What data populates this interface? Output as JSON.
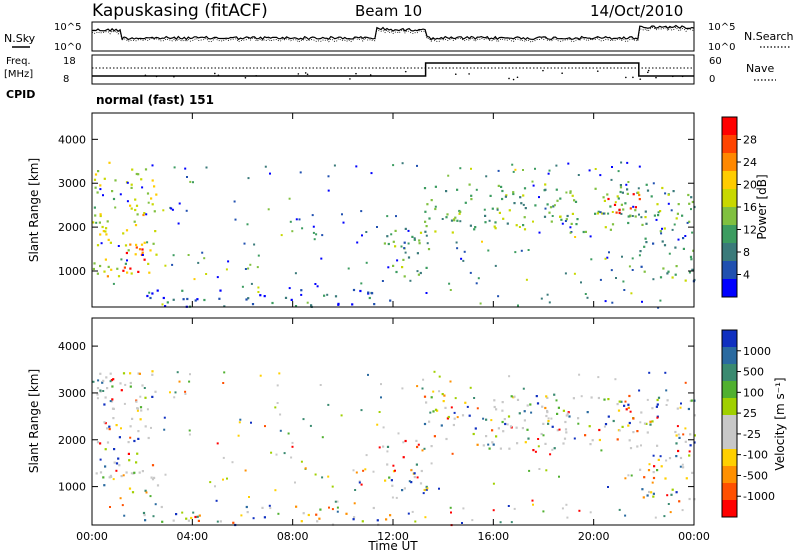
{
  "header": {
    "station": "Kapuskasing (fitACF)",
    "beam": "Beam 10",
    "date": "14/Oct/2010"
  },
  "noise_panel": {
    "left_label": "N.Sky",
    "right_label": "N.Search",
    "left_ticks": [
      "10^5",
      "10^0"
    ],
    "right_ticks": [
      "10^5",
      "10^0"
    ]
  },
  "freq_panel": {
    "left_label_1": "Freq.",
    "left_label_2": "[MHz]",
    "right_label": "Nave",
    "left_ticks": [
      "18",
      "8"
    ],
    "right_ticks": [
      "60",
      "0"
    ],
    "cpid_label": "CPID",
    "cpid_text": "normal (fast) 151"
  },
  "chart_data": [
    {
      "type": "heatmap",
      "name": "power",
      "xlabel": "Time UT",
      "ylabel": "Slant Range [km]",
      "xlim": [
        0,
        24
      ],
      "ylim": [
        180,
        4600
      ],
      "x_ticks": [
        "00:00",
        "04:00",
        "08:00",
        "12:00",
        "16:00",
        "20:00",
        "00:00"
      ],
      "y_ticks": [
        "1000",
        "2000",
        "3000",
        "4000"
      ],
      "y_tick_values": [
        1000,
        2000,
        3000,
        4000
      ],
      "colorbar_label": "Power [dB]",
      "colorbar_ticks": [
        "28",
        "24",
        "20",
        "16",
        "12",
        "8",
        "4"
      ],
      "colorbar_colors": [
        "#ff0000",
        "#ff4400",
        "#ff8800",
        "#ffcc00",
        "#c8d800",
        "#80c040",
        "#3c9c60",
        "#3a7a7a",
        "#2050b0",
        "#0000ff"
      ],
      "echo_regions": [
        {
          "t0": 0.0,
          "t1": 2.6,
          "r0": 900,
          "r1": 3500,
          "level": 0.55
        },
        {
          "t0": 1.0,
          "t1": 2.2,
          "r0": 950,
          "r1": 1600,
          "level": 0.95
        },
        {
          "t0": 2.0,
          "t1": 12.0,
          "r0": 200,
          "r1": 600,
          "level": 0.2
        },
        {
          "t0": 11.5,
          "t1": 13.4,
          "r0": 900,
          "r1": 2000,
          "level": 0.35
        },
        {
          "t0": 13.2,
          "t1": 24.0,
          "r0": 1900,
          "r1": 3000,
          "level": 0.4
        },
        {
          "t0": 20.5,
          "t1": 22.0,
          "r0": 2300,
          "r1": 2800,
          "level": 0.85
        },
        {
          "t0": 21.8,
          "t1": 24.0,
          "r0": 700,
          "r1": 1800,
          "level": 0.35
        }
      ]
    },
    {
      "type": "heatmap",
      "name": "velocity",
      "xlabel": "Time UT",
      "ylabel": "Slant Range [km]",
      "xlim": [
        0,
        24
      ],
      "ylim": [
        180,
        4600
      ],
      "x_ticks": [
        "00:00",
        "04:00",
        "08:00",
        "12:00",
        "16:00",
        "20:00",
        "00:00"
      ],
      "y_ticks": [
        "1000",
        "2000",
        "3000",
        "4000"
      ],
      "y_tick_values": [
        1000,
        2000,
        3000,
        4000
      ],
      "colorbar_label": "Velocity [m s⁻¹]",
      "colorbar_ticks": [
        "1000",
        "500",
        "100",
        "25",
        "-25",
        "-100",
        "-500",
        "-1000"
      ],
      "colorbar_colors": [
        "#1030c0",
        "#2a6aa0",
        "#3a8a70",
        "#50b030",
        "#a0d000",
        "#c8c8c8",
        "#c8c8c8",
        "#ffd000",
        "#ff9000",
        "#ff5000",
        "#ff0000"
      ],
      "echo_regions": [
        {
          "t0": 0.0,
          "t1": 2.6,
          "r0": 900,
          "r1": 3500,
          "level": 0.85
        },
        {
          "t0": 2.0,
          "t1": 12.0,
          "r0": 200,
          "r1": 600,
          "level": 0.3
        },
        {
          "t0": 11.5,
          "t1": 13.4,
          "r0": 900,
          "r1": 2000,
          "level": 0.5
        },
        {
          "t0": 13.2,
          "t1": 24.0,
          "r0": 1800,
          "r1": 3000,
          "level": 0.5
        },
        {
          "t0": 21.8,
          "t1": 24.0,
          "r0": 700,
          "r1": 1800,
          "level": 0.5
        }
      ]
    }
  ]
}
